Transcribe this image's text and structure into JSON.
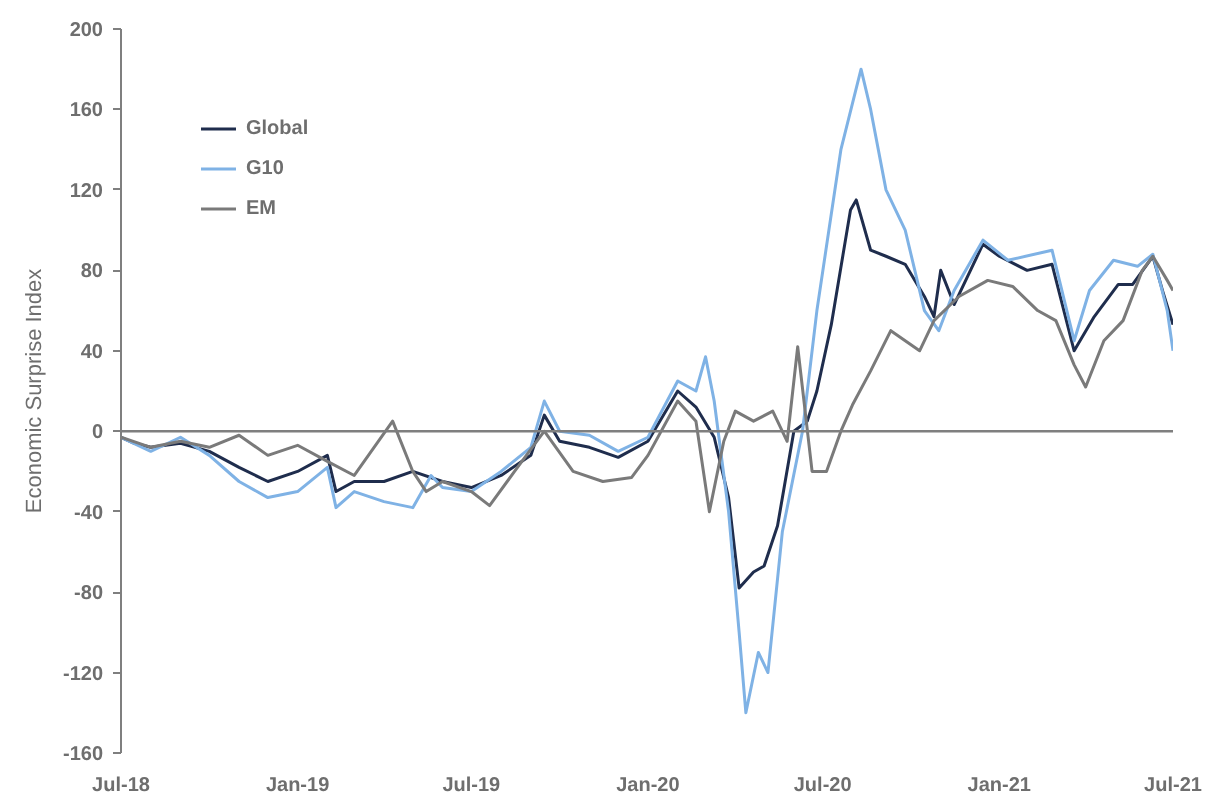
{
  "chart_data": {
    "type": "line",
    "ylabel": "Economic Surprise Index",
    "xlim": [
      "2018-07-01",
      "2021-07-01"
    ],
    "xticks": [
      {
        "value": "2018-07-01",
        "label": "Jul-18"
      },
      {
        "value": "2019-01-01",
        "label": "Jan-19"
      },
      {
        "value": "2019-07-01",
        "label": "Jul-19"
      },
      {
        "value": "2020-01-01",
        "label": "Jan-20"
      },
      {
        "value": "2020-07-01",
        "label": "Jul-20"
      },
      {
        "value": "2021-01-01",
        "label": "Jan-21"
      },
      {
        "value": "2021-07-01",
        "label": "Jul-21"
      }
    ],
    "ylim": [
      -160,
      200
    ],
    "yticks": [
      -160,
      -120,
      -80,
      -40,
      0,
      40,
      80,
      120,
      160,
      200
    ],
    "grid": false,
    "legend": "top left",
    "line_style": "solid",
    "ref_lines": [
      {
        "axis": "y",
        "value": 0,
        "color": "#7f7f7f"
      }
    ],
    "series": [
      {
        "name": "Global",
        "color": "#1f2d4d",
        "x": [
          "2018-07-01",
          "2018-07-15",
          "2018-08-01",
          "2018-09-01",
          "2018-10-01",
          "2018-11-01",
          "2018-12-01",
          "2019-01-01",
          "2019-02-01",
          "2019-02-10",
          "2019-03-01",
          "2019-04-01",
          "2019-05-01",
          "2019-06-01",
          "2019-07-01",
          "2019-08-01",
          "2019-09-01",
          "2019-09-15",
          "2019-10-01",
          "2019-11-01",
          "2019-12-01",
          "2020-01-01",
          "2020-02-01",
          "2020-02-20",
          "2020-03-10",
          "2020-03-25",
          "2020-04-05",
          "2020-04-20",
          "2020-05-01",
          "2020-05-15",
          "2020-06-01",
          "2020-06-15",
          "2020-06-25",
          "2020-07-10",
          "2020-07-30",
          "2020-08-05",
          "2020-08-20",
          "2020-09-05",
          "2020-09-25",
          "2020-10-15",
          "2020-10-25",
          "2020-11-01",
          "2020-11-15",
          "2020-12-15",
          "2021-01-01",
          "2021-01-30",
          "2021-02-25",
          "2021-03-20",
          "2021-04-10",
          "2021-05-05",
          "2021-05-20",
          "2021-06-10",
          "2021-06-20",
          "2021-07-01"
        ],
        "values": [
          -3,
          -6,
          -8,
          -6,
          -10,
          -18,
          -25,
          -20,
          -12,
          -30,
          -25,
          -25,
          -20,
          -25,
          -28,
          -22,
          -12,
          8,
          -5,
          -8,
          -13,
          -5,
          20,
          12,
          -3,
          -33,
          -78,
          -70,
          -67,
          -47,
          0,
          5,
          20,
          53,
          110,
          115,
          90,
          87,
          83,
          67,
          57,
          80,
          63,
          93,
          87,
          80,
          83,
          40,
          57,
          73,
          73,
          87,
          70,
          53
        ]
      },
      {
        "name": "G10",
        "color": "#7fb2e5",
        "x": [
          "2018-07-01",
          "2018-08-01",
          "2018-09-01",
          "2018-10-01",
          "2018-11-01",
          "2018-12-01",
          "2019-01-01",
          "2019-02-01",
          "2019-02-10",
          "2019-03-01",
          "2019-04-01",
          "2019-05-01",
          "2019-05-20",
          "2019-06-01",
          "2019-07-01",
          "2019-08-01",
          "2019-09-01",
          "2019-09-15",
          "2019-10-01",
          "2019-11-01",
          "2019-12-01",
          "2020-01-01",
          "2020-02-01",
          "2020-02-20",
          "2020-03-01",
          "2020-03-10",
          "2020-03-25",
          "2020-04-05",
          "2020-04-12",
          "2020-04-25",
          "2020-05-05",
          "2020-05-20",
          "2020-06-10",
          "2020-06-25",
          "2020-07-20",
          "2020-08-10",
          "2020-08-20",
          "2020-09-05",
          "2020-09-25",
          "2020-10-15",
          "2020-10-30",
          "2020-11-15",
          "2020-12-15",
          "2021-01-10",
          "2021-02-25",
          "2021-03-20",
          "2021-04-05",
          "2021-04-30",
          "2021-05-25",
          "2021-06-10",
          "2021-06-25",
          "2021-07-01"
        ],
        "values": [
          -3,
          -10,
          -3,
          -12,
          -25,
          -33,
          -30,
          -18,
          -38,
          -30,
          -35,
          -38,
          -22,
          -28,
          -30,
          -20,
          -8,
          15,
          0,
          -2,
          -10,
          -3,
          25,
          20,
          37,
          15,
          -40,
          -100,
          -140,
          -110,
          -120,
          -50,
          0,
          60,
          140,
          180,
          160,
          120,
          100,
          60,
          50,
          70,
          95,
          85,
          90,
          45,
          70,
          85,
          82,
          88,
          60,
          40
        ]
      },
      {
        "name": "EM",
        "color": "#7a7a7a",
        "x": [
          "2018-07-01",
          "2018-08-01",
          "2018-09-01",
          "2018-10-01",
          "2018-11-01",
          "2018-12-01",
          "2019-01-01",
          "2019-02-01",
          "2019-03-01",
          "2019-04-10",
          "2019-05-01",
          "2019-05-15",
          "2019-06-01",
          "2019-07-01",
          "2019-07-20",
          "2019-08-15",
          "2019-09-15",
          "2019-10-15",
          "2019-11-15",
          "2019-12-15",
          "2020-01-01",
          "2020-02-01",
          "2020-02-20",
          "2020-03-05",
          "2020-03-20",
          "2020-04-01",
          "2020-04-20",
          "2020-05-10",
          "2020-05-25",
          "2020-06-05",
          "2020-06-20",
          "2020-07-05",
          "2020-07-20",
          "2020-08-01",
          "2020-08-20",
          "2020-09-10",
          "2020-10-10",
          "2020-10-25",
          "2020-11-20",
          "2020-12-20",
          "2021-01-15",
          "2021-02-10",
          "2021-03-01",
          "2021-03-20",
          "2021-04-01",
          "2021-04-20",
          "2021-05-10",
          "2021-05-30",
          "2021-06-10",
          "2021-06-25",
          "2021-07-01"
        ],
        "values": [
          -3,
          -8,
          -5,
          -8,
          -2,
          -12,
          -7,
          -15,
          -22,
          5,
          -20,
          -30,
          -25,
          -30,
          -37,
          -20,
          0,
          -20,
          -25,
          -23,
          -12,
          15,
          5,
          -40,
          -5,
          10,
          5,
          10,
          -5,
          42,
          -20,
          -20,
          0,
          13,
          30,
          50,
          40,
          55,
          67,
          75,
          72,
          60,
          55,
          33,
          22,
          45,
          55,
          80,
          87,
          75,
          70
        ]
      }
    ]
  }
}
